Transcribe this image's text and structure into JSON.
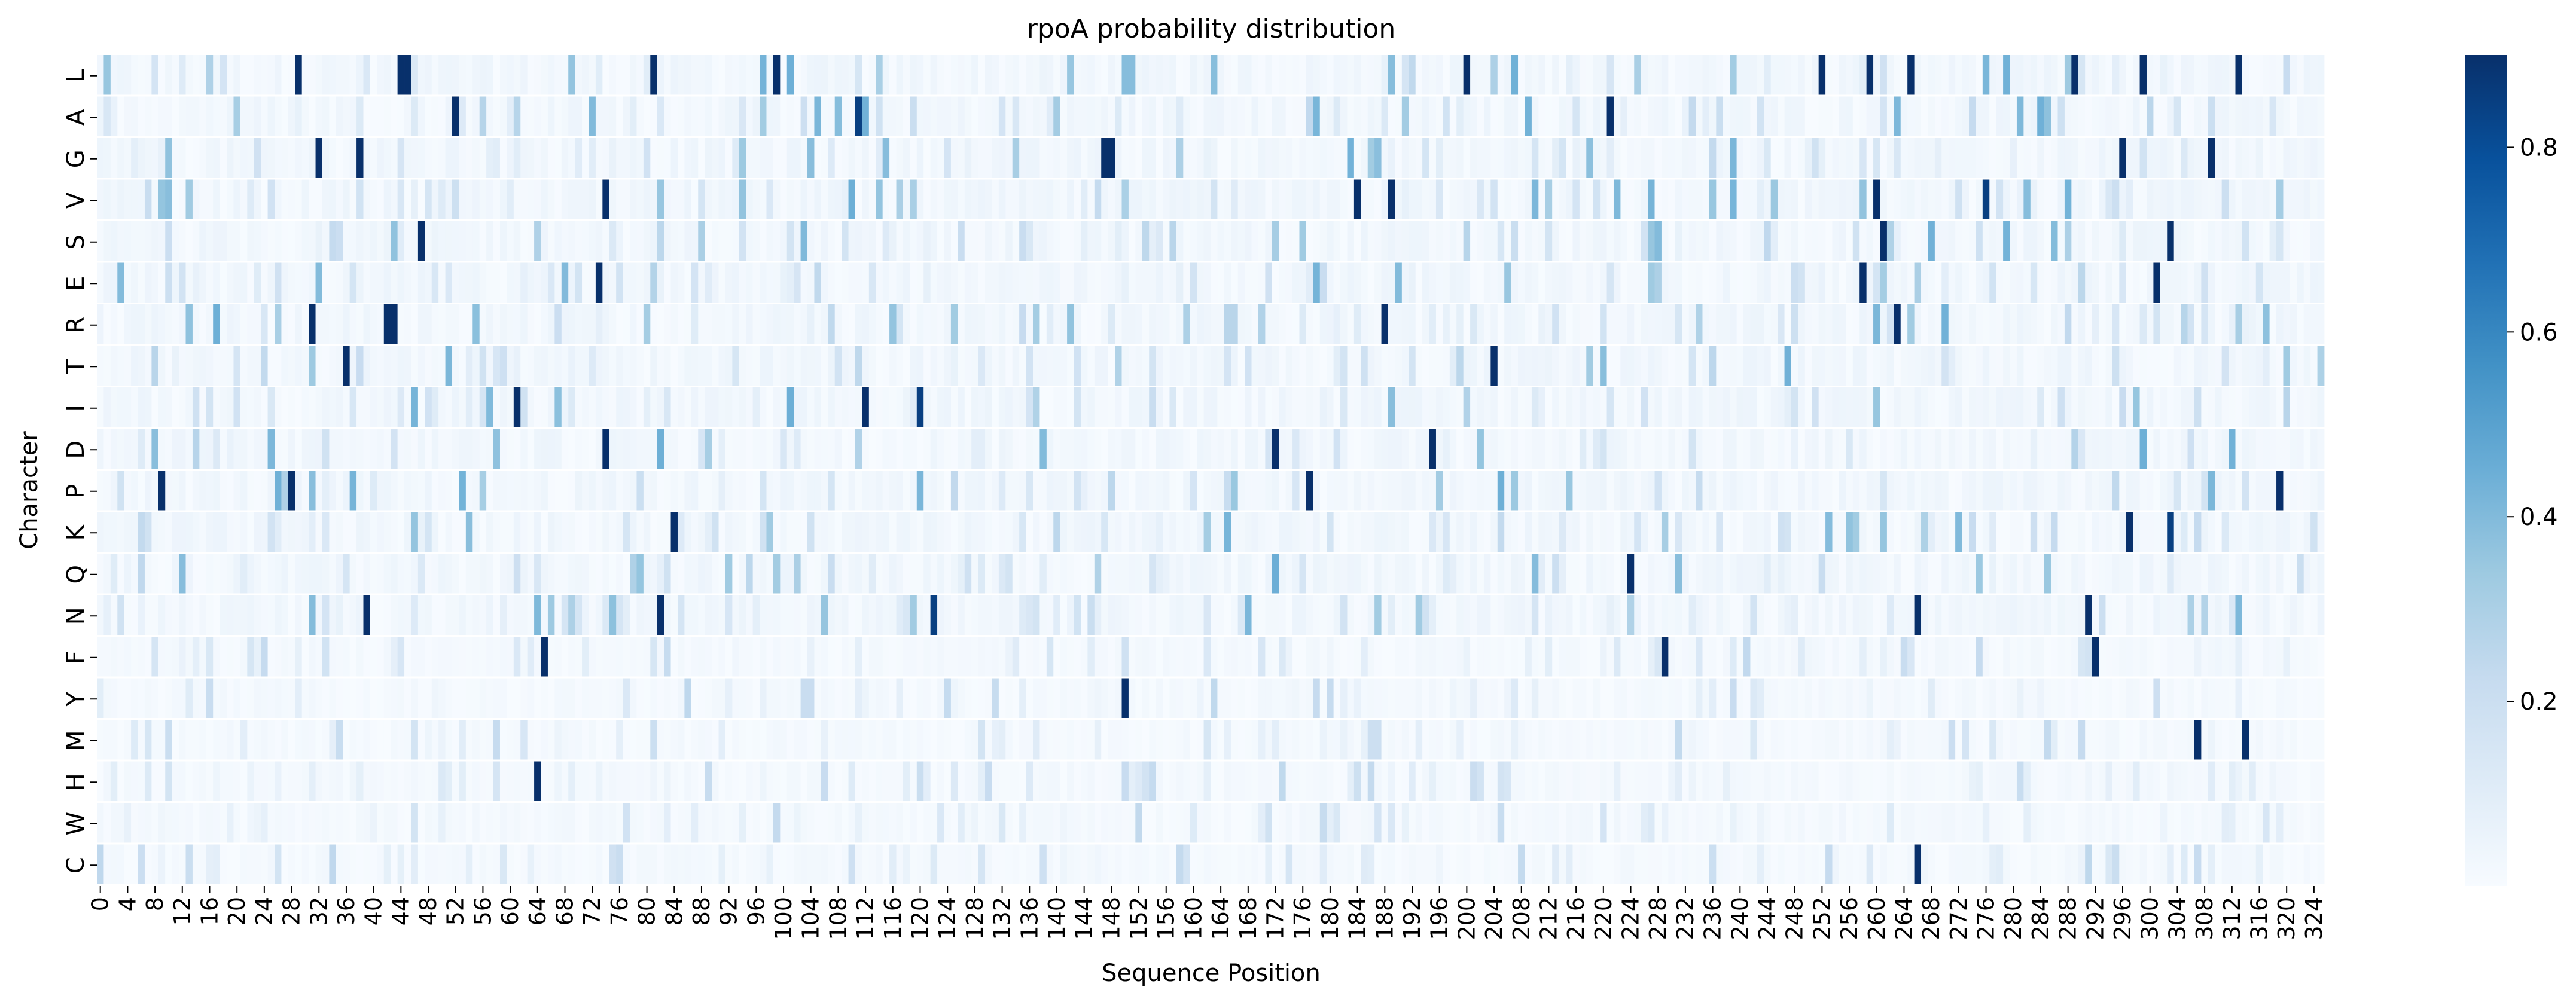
{
  "chart_data": {
    "type": "heatmap",
    "title": "rpoA probability distribution",
    "xlabel": "Sequence Position",
    "ylabel": "Character",
    "rows": [
      "L",
      "A",
      "G",
      "V",
      "S",
      "E",
      "R",
      "T",
      "I",
      "D",
      "P",
      "K",
      "Q",
      "N",
      "F",
      "Y",
      "M",
      "H",
      "W",
      "C"
    ],
    "n_columns": 326,
    "x_tick_step": 4,
    "x_tick_labels": [
      "0",
      "4",
      "8",
      "12",
      "16",
      "20",
      "24",
      "28",
      "32",
      "36",
      "40",
      "44",
      "48",
      "52",
      "56",
      "60",
      "64",
      "68",
      "72",
      "76",
      "80",
      "84",
      "88",
      "92",
      "96",
      "100",
      "104",
      "108",
      "112",
      "116",
      "120",
      "124",
      "128",
      "132",
      "136",
      "140",
      "144",
      "148",
      "152",
      "156",
      "160",
      "164",
      "168",
      "172",
      "176",
      "180",
      "184",
      "188",
      "192",
      "196",
      "200",
      "204",
      "208",
      "212",
      "216",
      "220",
      "224",
      "228",
      "232",
      "236",
      "240",
      "244",
      "248",
      "252",
      "256",
      "260",
      "264",
      "268",
      "272",
      "276",
      "280",
      "284",
      "288",
      "292",
      "296",
      "300",
      "304",
      "308",
      "312",
      "316",
      "320",
      "324"
    ],
    "colorbar": {
      "colormap": "Blues",
      "low_color": "#f7fbff",
      "high_color": "#08306b",
      "range": [
        0.0,
        0.9
      ],
      "tick_labels": [
        "0.2",
        "0.4",
        "0.6",
        "0.8"
      ],
      "tick_values": [
        0.2,
        0.4,
        0.6,
        0.8
      ]
    },
    "high_cells": [
      {
        "row": "L",
        "position": 29,
        "value": 0.9
      },
      {
        "row": "L",
        "position": 44,
        "value": 0.9
      },
      {
        "row": "L",
        "position": 45,
        "value": 0.9
      },
      {
        "row": "L",
        "position": 81,
        "value": 0.9
      },
      {
        "row": "L",
        "position": 99,
        "value": 0.9
      },
      {
        "row": "L",
        "position": 200,
        "value": 0.9
      },
      {
        "row": "L",
        "position": 252,
        "value": 0.9
      },
      {
        "row": "L",
        "position": 259,
        "value": 0.9
      },
      {
        "row": "L",
        "position": 265,
        "value": 0.9
      },
      {
        "row": "L",
        "position": 289,
        "value": 0.9
      },
      {
        "row": "L",
        "position": 299,
        "value": 0.9
      },
      {
        "row": "L",
        "position": 313,
        "value": 0.9
      },
      {
        "row": "A",
        "position": 52,
        "value": 0.9
      },
      {
        "row": "A",
        "position": 221,
        "value": 0.9
      },
      {
        "row": "A",
        "position": 111,
        "value": 0.85
      },
      {
        "row": "G",
        "position": 32,
        "value": 0.9
      },
      {
        "row": "G",
        "position": 38,
        "value": 0.9
      },
      {
        "row": "G",
        "position": 147,
        "value": 0.9
      },
      {
        "row": "G",
        "position": 148,
        "value": 0.9
      },
      {
        "row": "G",
        "position": 296,
        "value": 0.9
      },
      {
        "row": "G",
        "position": 309,
        "value": 0.9
      },
      {
        "row": "V",
        "position": 74,
        "value": 0.9
      },
      {
        "row": "V",
        "position": 184,
        "value": 0.9
      },
      {
        "row": "V",
        "position": 189,
        "value": 0.9
      },
      {
        "row": "V",
        "position": 260,
        "value": 0.9
      },
      {
        "row": "V",
        "position": 276,
        "value": 0.85
      },
      {
        "row": "S",
        "position": 47,
        "value": 0.9
      },
      {
        "row": "S",
        "position": 261,
        "value": 0.9
      },
      {
        "row": "S",
        "position": 303,
        "value": 0.9
      },
      {
        "row": "E",
        "position": 73,
        "value": 0.9
      },
      {
        "row": "E",
        "position": 258,
        "value": 0.9
      },
      {
        "row": "E",
        "position": 301,
        "value": 0.9
      },
      {
        "row": "R",
        "position": 31,
        "value": 0.9
      },
      {
        "row": "R",
        "position": 42,
        "value": 0.9
      },
      {
        "row": "R",
        "position": 43,
        "value": 0.9
      },
      {
        "row": "R",
        "position": 188,
        "value": 0.9
      },
      {
        "row": "R",
        "position": 263,
        "value": 0.9
      },
      {
        "row": "T",
        "position": 36,
        "value": 0.9
      },
      {
        "row": "T",
        "position": 204,
        "value": 0.9
      },
      {
        "row": "I",
        "position": 61,
        "value": 0.9
      },
      {
        "row": "I",
        "position": 112,
        "value": 0.9
      },
      {
        "row": "I",
        "position": 120,
        "value": 0.85
      },
      {
        "row": "D",
        "position": 74,
        "value": 0.9
      },
      {
        "row": "D",
        "position": 172,
        "value": 0.9
      },
      {
        "row": "D",
        "position": 195,
        "value": 0.9
      },
      {
        "row": "P",
        "position": 9,
        "value": 0.9
      },
      {
        "row": "P",
        "position": 28,
        "value": 0.9
      },
      {
        "row": "P",
        "position": 177,
        "value": 0.9
      },
      {
        "row": "P",
        "position": 319,
        "value": 0.9
      },
      {
        "row": "K",
        "position": 84,
        "value": 0.9
      },
      {
        "row": "K",
        "position": 297,
        "value": 0.9
      },
      {
        "row": "K",
        "position": 303,
        "value": 0.85
      },
      {
        "row": "Q",
        "position": 224,
        "value": 0.9
      },
      {
        "row": "N",
        "position": 39,
        "value": 0.9
      },
      {
        "row": "N",
        "position": 82,
        "value": 0.9
      },
      {
        "row": "N",
        "position": 122,
        "value": 0.85
      },
      {
        "row": "N",
        "position": 266,
        "value": 0.9
      },
      {
        "row": "N",
        "position": 291,
        "value": 0.9
      },
      {
        "row": "F",
        "position": 65,
        "value": 0.9
      },
      {
        "row": "F",
        "position": 229,
        "value": 0.9
      },
      {
        "row": "F",
        "position": 292,
        "value": 0.9
      },
      {
        "row": "Y",
        "position": 150,
        "value": 0.9
      },
      {
        "row": "M",
        "position": 307,
        "value": 0.9
      },
      {
        "row": "M",
        "position": 314,
        "value": 0.9
      },
      {
        "row": "H",
        "position": 64,
        "value": 0.9
      },
      {
        "row": "C",
        "position": 266,
        "value": 0.9
      }
    ]
  }
}
